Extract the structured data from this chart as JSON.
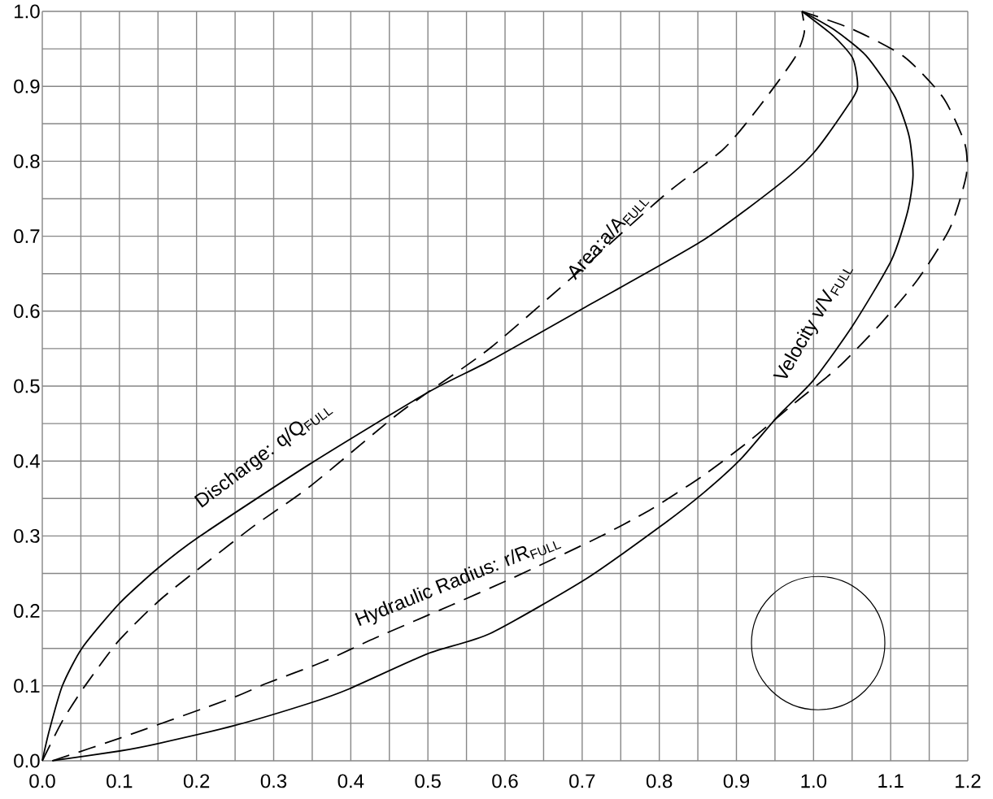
{
  "chart_data": {
    "type": "line",
    "xlim": [
      0,
      1.2
    ],
    "ylim": [
      0,
      1.0
    ],
    "xticks": [
      {
        "value": 0,
        "label": "0.0"
      },
      0.1,
      0.2,
      0.3,
      0.4,
      0.5,
      0.6,
      0.7,
      0.8,
      0.9,
      {
        "value": 1.0,
        "label": "1.0"
      },
      1.1,
      1.2
    ],
    "yticks": [
      {
        "value": 0,
        "label": "0.0"
      },
      0.1,
      0.2,
      0.3,
      0.4,
      0.5,
      0.6,
      0.7,
      0.8,
      0.9,
      {
        "value": 1.0,
        "label": "1.0"
      }
    ],
    "grid": true,
    "series": [
      {
        "name": "Discharge: q/Q$_{FULL}$",
        "color": "#000000",
        "line_style": "solid",
        "x": [
          0,
          0.009,
          0.026,
          0.052,
          0.1,
          0.15,
          0.202,
          0.347,
          0.499,
          0.581,
          0.707,
          0.856,
          0.954,
          1.0,
          1.043,
          1.057,
          1.051,
          1.026,
          0.985
        ],
        "values": [
          0,
          0.04,
          0.1,
          0.151,
          0.21,
          0.257,
          0.298,
          0.396,
          0.491,
          0.534,
          0.607,
          0.694,
          0.768,
          0.811,
          0.872,
          0.898,
          0.937,
          0.967,
          1.0
        ]
      },
      {
        "name": "Area:a/A$_{FULL}$",
        "color": "#000000",
        "line_style": "dashed",
        "x": [
          0,
          0.026,
          0.054,
          0.099,
          0.153,
          0.215,
          0.274,
          0.347,
          0.454,
          0.499,
          0.581,
          0.698,
          0.807,
          0.883,
          0.929,
          0.975,
          0.988,
          0.985
        ],
        "values": [
          0,
          0.053,
          0.098,
          0.16,
          0.215,
          0.266,
          0.313,
          0.366,
          0.457,
          0.491,
          0.551,
          0.655,
          0.755,
          0.816,
          0.872,
          0.937,
          0.972,
          1.0
        ]
      },
      {
        "name": "Velocity v/V$_{FULL}$",
        "color": "#000000",
        "line_style": "solid",
        "x": [
          0.013,
          0.1,
          0.15,
          0.249,
          0.347,
          0.398,
          0.5,
          0.581,
          0.707,
          0.807,
          0.858,
          0.906,
          0.954,
          1.0,
          1.051,
          1.101,
          1.122,
          1.129,
          1.124,
          1.106,
          1.068,
          1.026,
          0.985
        ],
        "values": [
          0,
          0.013,
          0.023,
          0.047,
          0.077,
          0.096,
          0.143,
          0.17,
          0.244,
          0.317,
          0.358,
          0.403,
          0.46,
          0.508,
          0.581,
          0.668,
          0.733,
          0.781,
          0.833,
          0.885,
          0.941,
          0.976,
          1.0
        ]
      },
      {
        "name": "Hydraulic Radius: r/R$_{FULL}$",
        "color": "#000000",
        "line_style": "dashed",
        "x": [
          0.013,
          0.1,
          0.244,
          0.29,
          0.364,
          0.432,
          0.531,
          0.61,
          0.723,
          0.79,
          0.856,
          0.917,
          0.975,
          1.032,
          1.085,
          1.135,
          1.177,
          1.198,
          1.196,
          1.168,
          1.118,
          1.051,
          0.985
        ],
        "values": [
          0,
          0.03,
          0.083,
          0.103,
          0.132,
          0.164,
          0.208,
          0.244,
          0.299,
          0.336,
          0.38,
          0.427,
          0.477,
          0.525,
          0.581,
          0.642,
          0.711,
          0.781,
          0.824,
          0.885,
          0.939,
          0.976,
          1.0
        ]
      }
    ]
  }
}
